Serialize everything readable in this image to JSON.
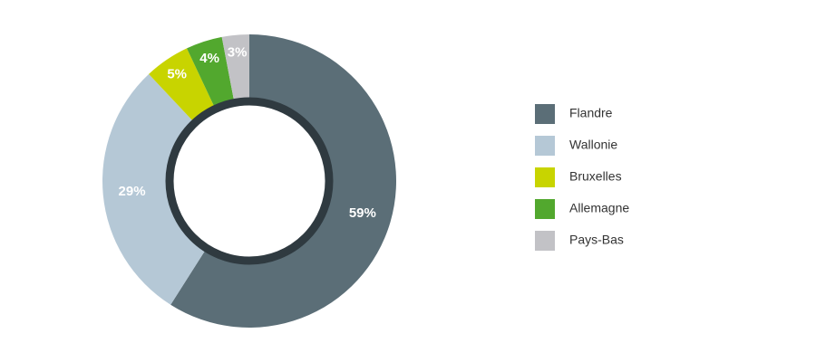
{
  "chart_data": {
    "type": "pie",
    "categories": [
      "Flandre",
      "Wallonie",
      "Bruxelles",
      "Allemagne",
      "Pays-Bas"
    ],
    "values": [
      59,
      29,
      5,
      4,
      3
    ],
    "value_labels": [
      "59%",
      "29%",
      "5%",
      "4%",
      "3%"
    ],
    "colors": [
      "#5b6e77",
      "#b5c8d6",
      "#c8d400",
      "#52a82e",
      "#c2c2c6"
    ],
    "donut": true,
    "legend": "right"
  }
}
